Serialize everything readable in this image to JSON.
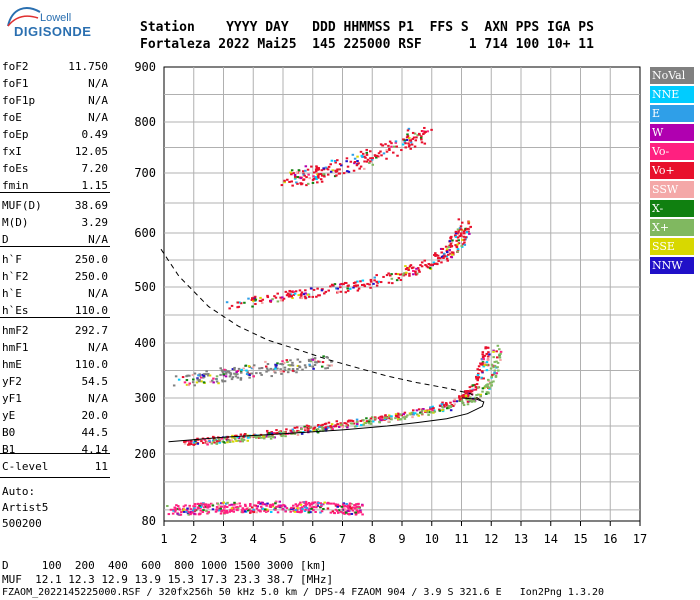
{
  "logo": {
    "brand_top": "Lowell",
    "brand_bottom": "DIGISONDE"
  },
  "header": {
    "line1": "Station    YYYY DAY   DDD HHMMSS P1  FFS S  AXN PPS IGA PS",
    "line2": "Fortaleza 2022 Mai25  145 225000 RSF      1 714 100 10+ 11"
  },
  "params": [
    {
      "name": "foF2",
      "value": "11.750"
    },
    {
      "name": "foF1",
      "value": "N/A"
    },
    {
      "name": "foF1p",
      "value": "N/A"
    },
    {
      "name": "foE",
      "value": "N/A"
    },
    {
      "name": "foEp",
      "value": "0.49"
    },
    {
      "name": "fxI",
      "value": "12.05"
    },
    {
      "name": "foEs",
      "value": "7.20"
    },
    {
      "name": "fmin",
      "value": "1.15"
    },
    {
      "name": "MUF(D)",
      "value": "38.69"
    },
    {
      "name": "M(D)",
      "value": "3.29"
    },
    {
      "name": "D",
      "value": "N/A"
    },
    {
      "name": "h`F",
      "value": "250.0"
    },
    {
      "name": "h`F2",
      "value": "250.0"
    },
    {
      "name": "h`E",
      "value": "N/A"
    },
    {
      "name": "h`Es",
      "value": "110.0"
    },
    {
      "name": "hmF2",
      "value": "292.7"
    },
    {
      "name": "hmF1",
      "value": "N/A"
    },
    {
      "name": "hmE",
      "value": "110.0"
    },
    {
      "name": "yF2",
      "value": "54.5"
    },
    {
      "name": "yF1",
      "value": "N/A"
    },
    {
      "name": "yE",
      "value": "20.0"
    },
    {
      "name": "B0",
      "value": "44.5"
    },
    {
      "name": "B1",
      "value": "4.14"
    },
    {
      "name": "C-level",
      "value": "11"
    }
  ],
  "auto": {
    "label": "Auto:",
    "software": "Artist5",
    "version": "500200"
  },
  "legend": [
    {
      "label": "NoVal",
      "color": "#808080"
    },
    {
      "label": "NNE",
      "color": "#00ccff"
    },
    {
      "label": "E",
      "color": "#2f9fe8"
    },
    {
      "label": "W",
      "color": "#b000b0"
    },
    {
      "label": "Vo-",
      "color": "#ff2080"
    },
    {
      "label": "Vo+",
      "color": "#e8102c"
    },
    {
      "label": "SSW",
      "color": "#f4a8a8"
    },
    {
      "label": "X-",
      "color": "#108010"
    },
    {
      "label": "X+",
      "color": "#80b860"
    },
    {
      "label": "SSE",
      "color": "#d8d800"
    },
    {
      "label": "NNW",
      "color": "#2010c8"
    }
  ],
  "footer": {
    "distance": "D     100  200  400  600  800 1000 1500 3000 [km]",
    "muf": "MUF  12.1 12.3 12.9 13.9 15.3 17.3 23.3 38.7 [MHz]",
    "fileinfo": "FZAOM_2022145225000.RSF / 320fx256h 50 kHz 5.0 km / DPS-4 FZAOM 904 / 3.9 S 321.6 E   Ion2Png 1.3.20"
  },
  "chart_data": {
    "type": "scatter",
    "xlim": [
      1,
      17
    ],
    "ylim": [
      80,
      900
    ],
    "x_ticks": [
      "1",
      "2",
      "3",
      "4",
      "5",
      "6",
      "7",
      "8",
      "9",
      "10",
      "11",
      "12",
      "13",
      "14",
      "15",
      "16",
      "17"
    ],
    "y_ticks": [
      "80",
      "200",
      "300",
      "400",
      "500",
      "600",
      "700",
      "800",
      "900"
    ],
    "grid": true,
    "series": [
      {
        "name": "Vo+",
        "points": [
          [
            1.7,
            222
          ],
          [
            2.5,
            226
          ],
          [
            3.5,
            232
          ],
          [
            4.5,
            238
          ],
          [
            5.5,
            245
          ],
          [
            6.5,
            252
          ],
          [
            7.5,
            260
          ],
          [
            8.5,
            268
          ],
          [
            9.5,
            277
          ],
          [
            10.2,
            285
          ],
          [
            10.8,
            296
          ],
          [
            11.2,
            310
          ],
          [
            11.5,
            332
          ],
          [
            11.7,
            360
          ],
          [
            11.8,
            395
          ]
        ]
      },
      {
        "name": "X+",
        "points": [
          [
            2.5,
            222
          ],
          [
            3.5,
            228
          ],
          [
            4.5,
            234
          ],
          [
            5.5,
            241
          ],
          [
            6.5,
            248
          ],
          [
            7.5,
            256
          ],
          [
            8.5,
            264
          ],
          [
            9.5,
            272
          ],
          [
            10.5,
            282
          ],
          [
            11.2,
            295
          ],
          [
            11.7,
            310
          ],
          [
            12.0,
            335
          ],
          [
            12.1,
            365
          ],
          [
            12.2,
            395
          ]
        ]
      },
      {
        "name": "second hop O",
        "points": [
          [
            3.2,
            470
          ],
          [
            4.5,
            480
          ],
          [
            5.5,
            488
          ],
          [
            6.5,
            496
          ],
          [
            7.5,
            505
          ],
          [
            8.5,
            518
          ],
          [
            9.5,
            535
          ],
          [
            10.2,
            553
          ],
          [
            10.7,
            575
          ],
          [
            11.0,
            600
          ],
          [
            11.1,
            618
          ]
        ]
      },
      {
        "name": "third hop",
        "points": [
          [
            5.0,
            690
          ],
          [
            6.0,
            700
          ],
          [
            7.0,
            715
          ],
          [
            8.0,
            735
          ],
          [
            9.0,
            760
          ],
          [
            9.7,
            780
          ]
        ]
      },
      {
        "name": "Es",
        "points": [
          [
            1.2,
            100
          ],
          [
            2.0,
            103
          ],
          [
            3.0,
            105
          ],
          [
            4.0,
            106
          ],
          [
            5.0,
            107
          ],
          [
            6.0,
            106
          ],
          [
            7.0,
            104
          ],
          [
            7.5,
            103
          ]
        ]
      },
      {
        "name": "Es 2nd hop",
        "points": [
          [
            1.5,
            335
          ],
          [
            2.5,
            340
          ],
          [
            3.5,
            348
          ],
          [
            4.5,
            355
          ],
          [
            5.5,
            360
          ],
          [
            6.5,
            368
          ]
        ]
      }
    ],
    "profile_solid": [
      [
        1.15,
        222
      ],
      [
        3,
        230
      ],
      [
        5,
        236
      ],
      [
        7,
        243
      ],
      [
        8.5,
        250
      ],
      [
        9.5,
        256
      ],
      [
        10.5,
        263
      ],
      [
        11.2,
        272
      ],
      [
        11.7,
        285
      ],
      [
        11.75,
        293
      ],
      [
        11.5,
        298
      ],
      [
        11.0,
        300
      ]
    ],
    "profile_dashed": [
      [
        0.9,
        570
      ],
      [
        1.5,
        520
      ],
      [
        2.5,
        465
      ],
      [
        3.5,
        430
      ],
      [
        4.5,
        405
      ],
      [
        5.5,
        388
      ],
      [
        6.5,
        370
      ],
      [
        7.5,
        355
      ],
      [
        8.5,
        340
      ],
      [
        9.5,
        328
      ],
      [
        10.5,
        318
      ],
      [
        11.3,
        308
      ],
      [
        11.75,
        293
      ]
    ]
  }
}
